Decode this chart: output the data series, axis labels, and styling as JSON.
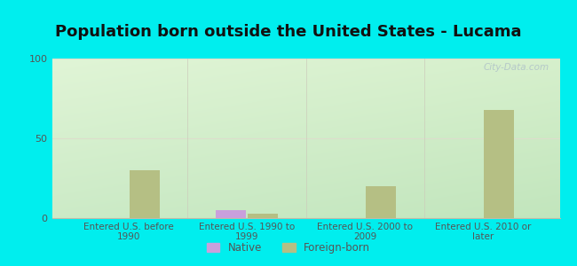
{
  "title": "Population born outside the United States - Lucama",
  "categories": [
    "Entered U.S. before\n1990",
    "Entered U.S. 1990 to\n1999",
    "Entered U.S. 2000 to\n2009",
    "Entered U.S. 2010 or\nlater"
  ],
  "native_values": [
    0,
    5,
    0,
    0
  ],
  "foreign_values": [
    30,
    3,
    20,
    68
  ],
  "native_color": "#c9a0dc",
  "foreign_color": "#b5bf84",
  "ylim": [
    0,
    100
  ],
  "yticks": [
    0,
    50,
    100
  ],
  "outer_bg": "#00eeee",
  "watermark": "City-Data.com",
  "legend_native": "Native",
  "legend_foreign": "Foreign-born",
  "bar_width": 0.25,
  "title_fontsize": 13,
  "grid_color": "#e8e8e8"
}
